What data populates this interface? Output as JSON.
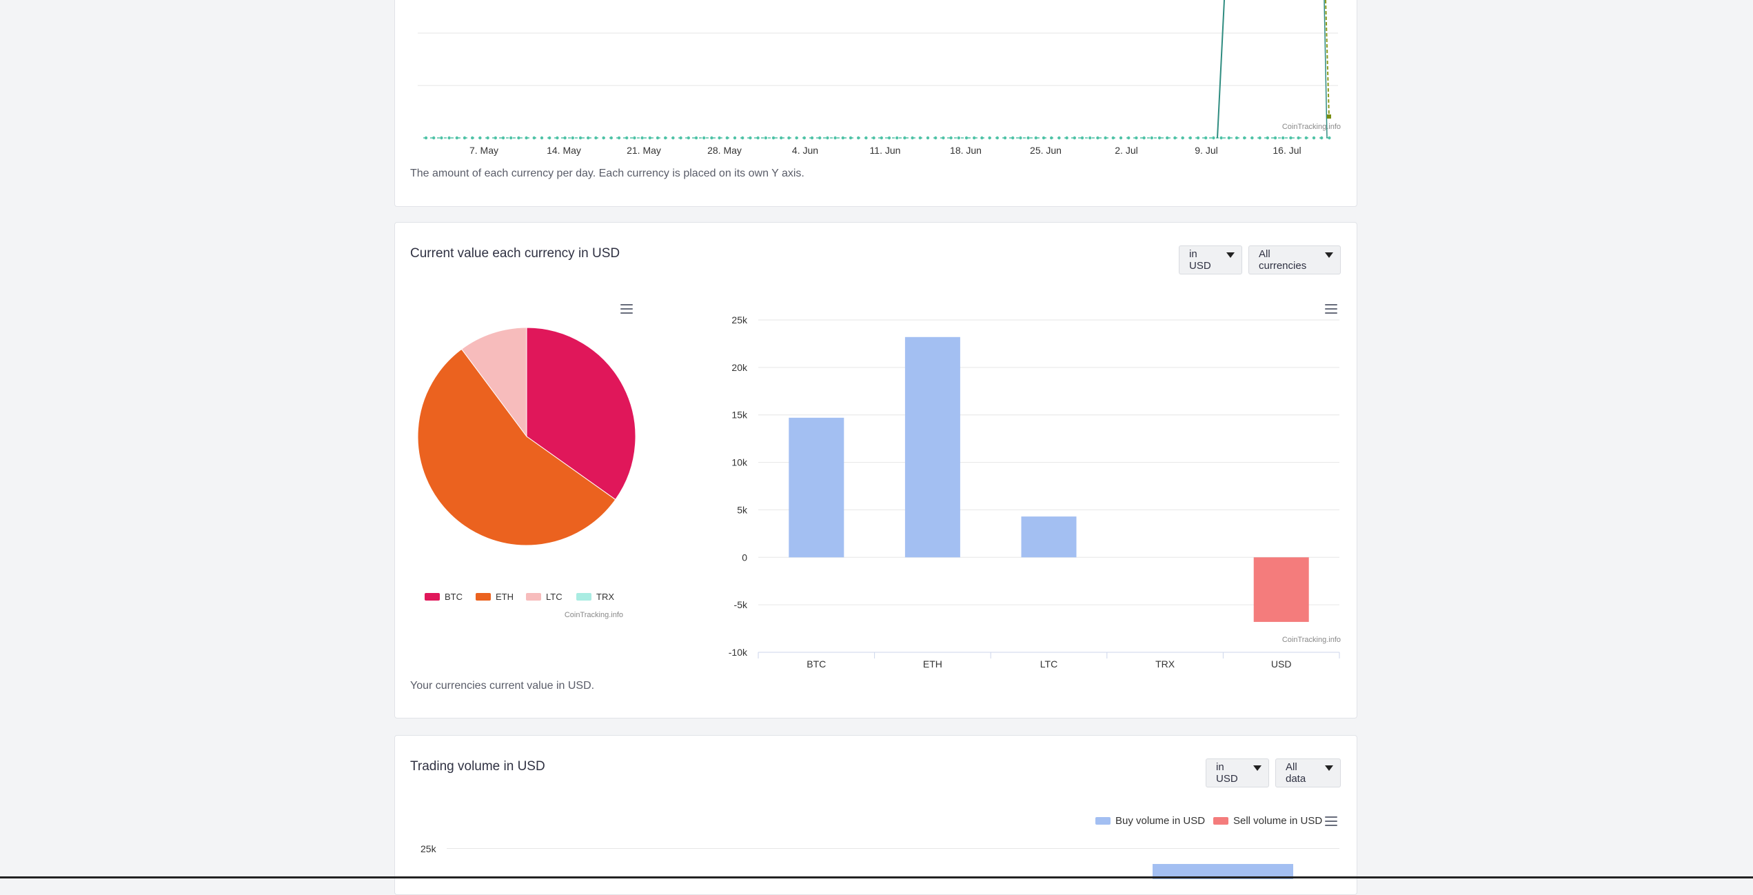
{
  "top_card": {
    "caption": "The amount of each currency per day. Each currency is placed on its own Y axis.",
    "credits": "CoinTracking.info",
    "x_ticks": [
      "7. May",
      "14. May",
      "21. May",
      "28. May",
      "4. Jun",
      "11. Jun",
      "18. Jun",
      "25. Jun",
      "2. Jul",
      "9. Jul",
      "16. Jul"
    ]
  },
  "value_card": {
    "title": "Current value each currency in USD",
    "caption": "Your currencies current value in USD.",
    "dropdown_currency": "in USD",
    "dropdown_filter": "All currencies",
    "pie_credits": "CoinTracking.info",
    "bar_credits": "CoinTracking.info"
  },
  "volume_card": {
    "title": "Trading volume in USD",
    "dropdown_currency": "in USD",
    "dropdown_filter": "All data",
    "legend_buy": "Buy volume in USD",
    "legend_sell": "Sell volume in USD",
    "y_tick_top": "25k"
  },
  "colors": {
    "btc": "#e0175a",
    "eth": "#eb621f",
    "ltc": "#f7bcbc",
    "trx": "#a9ece2",
    "bar_positive": "#a3bff2",
    "bar_negative": "#f47c7c",
    "top_line": "#2f8c80",
    "top_markers": "#4ec2a6"
  },
  "chart_data": [
    {
      "type": "line",
      "title": "",
      "x": [
        "7. May",
        "14. May",
        "21. May",
        "28. May",
        "4. Jun",
        "11. Jun",
        "18. Jun",
        "25. Jun",
        "2. Jul",
        "9. Jul",
        "16. Jul"
      ],
      "grid": true,
      "note": ""
    },
    {
      "type": "pie",
      "title": "",
      "labels": [
        "BTC",
        "ETH",
        "LTC",
        "TRX"
      ],
      "values": [
        14700,
        23200,
        4300,
        0
      ],
      "legend": "bottom"
    },
    {
      "type": "bar",
      "title": "",
      "categories": [
        "BTC",
        "ETH",
        "LTC",
        "TRX",
        "USD"
      ],
      "values": [
        14700,
        23200,
        4300,
        0,
        -6800
      ],
      "ylim": [
        -10000,
        25000
      ],
      "y_ticks": [
        "25k",
        "20k",
        "15k",
        "10k",
        "5k",
        "0",
        "-5k",
        "-10k"
      ],
      "grid": true
    }
  ]
}
